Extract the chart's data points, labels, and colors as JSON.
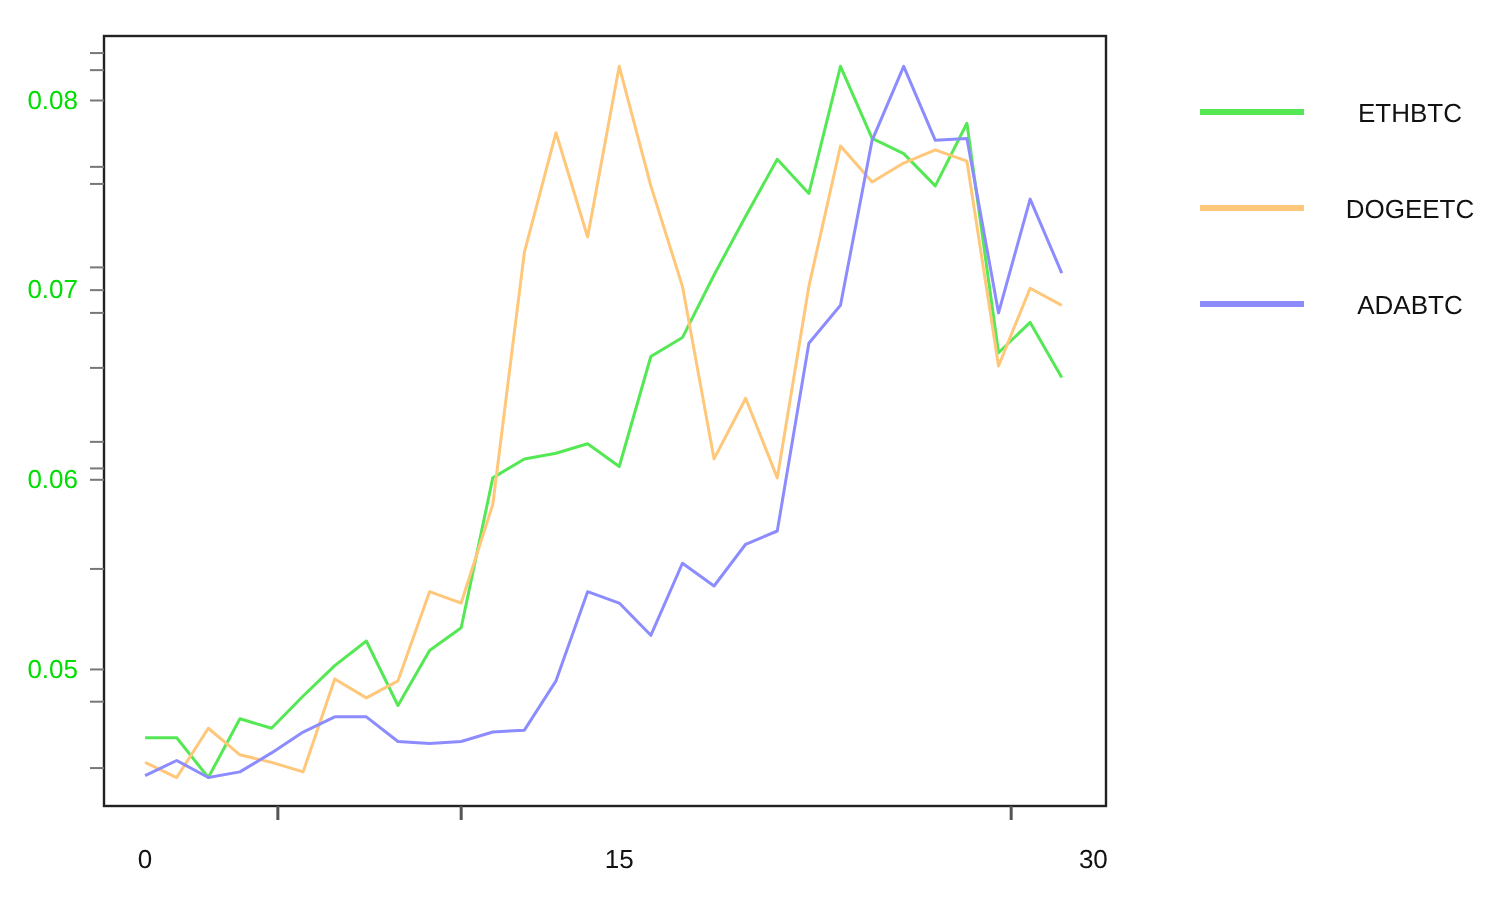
{
  "chart_data": {
    "type": "line",
    "x": [
      0,
      1,
      2,
      3,
      4,
      5,
      6,
      7,
      8,
      9,
      10,
      11,
      12,
      13,
      14,
      15,
      16,
      17,
      18,
      19,
      20,
      21,
      22,
      23,
      24,
      25,
      26,
      27,
      28,
      29
    ],
    "xlim": [
      -1.3,
      30.4
    ],
    "xticks": [
      0,
      {
        "value": 4.2,
        "label": null
      },
      {
        "value": 10,
        "label": null
      },
      15,
      {
        "value": 27.4,
        "label": null
      },
      30
    ],
    "ylim": [
      0.0428,
      0.0834
    ],
    "yticks": [
      {
        "value": 0.0448,
        "label": null
      },
      {
        "value": 0.0483,
        "label": null
      },
      0.05,
      {
        "value": 0.0553,
        "label": null
      },
      0.06,
      {
        "value": 0.0606,
        "label": null
      },
      {
        "value": 0.062,
        "label": null
      },
      {
        "value": 0.0659,
        "label": null
      },
      {
        "value": 0.0688,
        "label": null
      },
      0.07,
      {
        "value": 0.0712,
        "label": null
      },
      {
        "value": 0.0756,
        "label": null
      },
      {
        "value": 0.0765,
        "label": null
      },
      0.08,
      {
        "value": 0.0816,
        "label": null
      },
      {
        "value": 0.0825,
        "label": null
      }
    ],
    "series": [
      {
        "name": "ETHBTC",
        "color": "#55e855",
        "values": [
          0.0464,
          0.0464,
          0.0443,
          0.0474,
          0.0469,
          0.0486,
          0.0502,
          0.0515,
          0.0481,
          0.051,
          0.0522,
          0.0601,
          0.0611,
          0.0614,
          0.0619,
          0.0607,
          0.0665,
          0.0675,
          0.0708,
          0.0739,
          0.0769,
          0.0751,
          0.0818,
          0.078,
          0.0772,
          0.0755,
          0.0788,
          0.0667,
          0.0683,
          0.0654
        ]
      },
      {
        "name": "DOGEETC",
        "color": "#ffc77a",
        "values": [
          0.0451,
          0.0443,
          0.0469,
          0.0455,
          0.0451,
          0.0446,
          0.0495,
          0.0485,
          0.0494,
          0.0541,
          0.0535,
          0.0587,
          0.072,
          0.0783,
          0.0728,
          0.0818,
          0.0755,
          0.0702,
          0.0611,
          0.0643,
          0.0601,
          0.0702,
          0.0776,
          0.0757,
          0.0767,
          0.0774,
          0.0768,
          0.066,
          0.0701,
          0.0692
        ]
      },
      {
        "name": "ADABTC",
        "color": "#8c8cff",
        "values": [
          0.0444,
          0.0452,
          0.0443,
          0.0446,
          0.0456,
          0.0467,
          0.0475,
          0.0475,
          0.0462,
          0.0461,
          0.0462,
          0.0467,
          0.0468,
          0.0494,
          0.0541,
          0.0535,
          0.0518,
          0.0556,
          0.0544,
          0.0566,
          0.0573,
          0.0672,
          0.0692,
          0.0779,
          0.0818,
          0.0779,
          0.078,
          0.0688,
          0.0748,
          0.0709
        ]
      }
    ],
    "legend": "right",
    "grid": false,
    "marker": "none",
    "line_style": "solid"
  }
}
